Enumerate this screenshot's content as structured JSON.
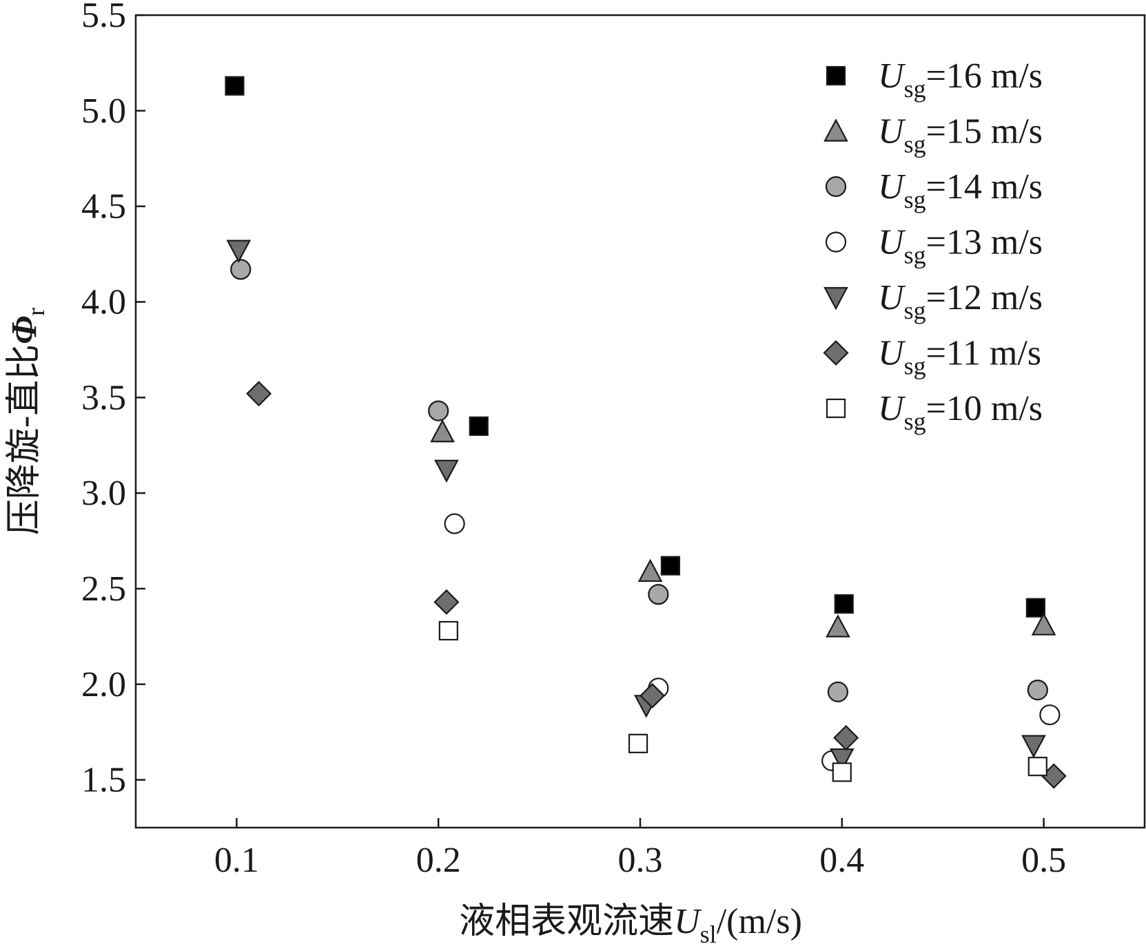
{
  "chart_data": {
    "type": "scatter",
    "xlabel": {
      "prefix": "液相表观流速",
      "symbol": "U",
      "subscript": "sl",
      "suffix": "/(m/s)"
    },
    "ylabel": {
      "prefix": "压降旋-直比",
      "symbol": "Φ",
      "subscript": "r"
    },
    "xlim": [
      0.05,
      0.55
    ],
    "ylim": [
      1.25,
      5.5
    ],
    "xticks": [
      0.1,
      0.2,
      0.3,
      0.4,
      0.5
    ],
    "xtick_labels": [
      "0.1",
      "0.2",
      "0.3",
      "0.4",
      "0.5"
    ],
    "yticks": [
      1.5,
      2.0,
      2.5,
      3.0,
      3.5,
      4.0,
      4.5,
      5.0,
      5.5
    ],
    "ytick_labels": [
      "1.5",
      "2.0",
      "2.5",
      "3.0",
      "3.5",
      "4.0",
      "4.5",
      "5.0",
      "5.5"
    ],
    "grid": false,
    "legend_position": "top-right",
    "series": [
      {
        "name": "=16 m/s",
        "symbol": "U",
        "subscript": "sg",
        "marker": "square",
        "fill": "#000000",
        "points": [
          [
            0.099,
            5.13
          ],
          [
            0.22,
            3.35
          ],
          [
            0.315,
            2.62
          ],
          [
            0.401,
            2.42
          ],
          [
            0.496,
            2.4
          ]
        ]
      },
      {
        "name": "=15 m/s",
        "symbol": "U",
        "subscript": "sg",
        "marker": "triangle-up",
        "fill": "#8c8c8c",
        "points": [
          [
            0.202,
            3.32
          ],
          [
            0.305,
            2.59
          ],
          [
            0.398,
            2.3
          ],
          [
            0.5,
            2.31
          ]
        ]
      },
      {
        "name": "=14 m/s",
        "symbol": "U",
        "subscript": "sg",
        "marker": "circle",
        "fill": "#a8a8a8",
        "points": [
          [
            0.102,
            4.17
          ],
          [
            0.2,
            3.43
          ],
          [
            0.309,
            2.47
          ],
          [
            0.398,
            1.96
          ],
          [
            0.497,
            1.97
          ]
        ]
      },
      {
        "name": "=13 m/s",
        "symbol": "U",
        "subscript": "sg",
        "marker": "circle",
        "fill": "#ffffff",
        "points": [
          [
            0.208,
            2.84
          ],
          [
            0.309,
            1.98
          ],
          [
            0.395,
            1.6
          ],
          [
            0.503,
            1.84
          ]
        ]
      },
      {
        "name": "=12 m/s",
        "symbol": "U",
        "subscript": "sg",
        "marker": "triangle-down",
        "fill": "#6e6e6e",
        "points": [
          [
            0.101,
            4.27
          ],
          [
            0.204,
            3.12
          ],
          [
            0.303,
            1.89
          ],
          [
            0.4,
            1.61
          ],
          [
            0.495,
            1.68
          ]
        ]
      },
      {
        "name": "=11 m/s",
        "symbol": "U",
        "subscript": "sg",
        "marker": "diamond",
        "fill": "#6e6e6e",
        "points": [
          [
            0.111,
            3.52
          ],
          [
            0.204,
            2.43
          ],
          [
            0.306,
            1.94
          ],
          [
            0.402,
            1.72
          ],
          [
            0.505,
            1.52
          ]
        ]
      },
      {
        "name": "=10 m/s",
        "symbol": "U",
        "subscript": "sg",
        "marker": "square",
        "fill": "#ffffff",
        "points": [
          [
            0.205,
            2.28
          ],
          [
            0.299,
            1.69
          ],
          [
            0.4,
            1.54
          ],
          [
            0.497,
            1.57
          ]
        ]
      }
    ]
  }
}
